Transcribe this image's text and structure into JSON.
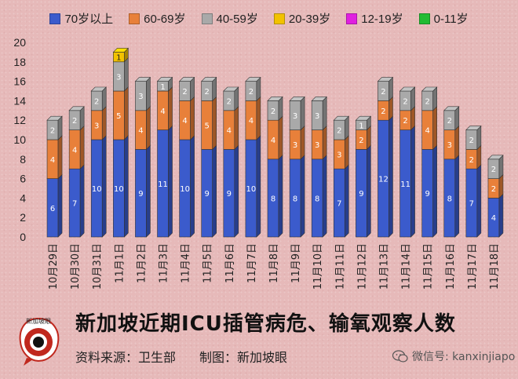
{
  "legend": [
    {
      "label": "70岁以上",
      "color": "#3b5bcc"
    },
    {
      "label": "60-69岁",
      "color": "#e8803a"
    },
    {
      "label": "40-59岁",
      "color": "#a9a9a9"
    },
    {
      "label": "20-39岁",
      "color": "#f2c200"
    },
    {
      "label": "12-19岁",
      "color": "#e020e0"
    },
    {
      "label": "0-11岁",
      "color": "#22bb33"
    }
  ],
  "chart_data": {
    "type": "bar",
    "stacked": true,
    "categories": [
      "10月29日",
      "10月30日",
      "10月31日",
      "11月1日",
      "11月2日",
      "11月3日",
      "11月4日",
      "11月5日",
      "11月6日",
      "11月7日",
      "11月8日",
      "11月9日",
      "11月10日",
      "11月11日",
      "11月12日",
      "11月13日",
      "11月14日",
      "11月15日",
      "11月16日",
      "11月17日",
      "11月18日"
    ],
    "series": [
      {
        "name": "70岁以上",
        "values": [
          6,
          7,
          10,
          10,
          9,
          11,
          10,
          9,
          9,
          10,
          8,
          8,
          8,
          7,
          9,
          12,
          11,
          9,
          8,
          7,
          4
        ]
      },
      {
        "name": "60-69岁",
        "values": [
          4,
          4,
          3,
          5,
          4,
          4,
          4,
          5,
          4,
          4,
          4,
          3,
          3,
          3,
          2,
          2,
          2,
          4,
          3,
          2,
          2
        ]
      },
      {
        "name": "40-59岁",
        "values": [
          2,
          2,
          2,
          3,
          3,
          1,
          2,
          2,
          2,
          2,
          2,
          3,
          3,
          2,
          1,
          2,
          2,
          2,
          2,
          2,
          2
        ]
      },
      {
        "name": "20-39岁",
        "values": [
          0,
          0,
          0,
          1,
          0,
          0,
          0,
          0,
          0,
          0,
          0,
          0,
          0,
          0,
          0,
          0,
          0,
          0,
          0,
          0,
          0
        ]
      },
      {
        "name": "12-19岁",
        "values": [
          0,
          0,
          0,
          0,
          0,
          0,
          0,
          0,
          0,
          0,
          0,
          0,
          0,
          0,
          0,
          0,
          0,
          0,
          0,
          0,
          0
        ]
      },
      {
        "name": "0-11岁",
        "values": [
          0,
          0,
          0,
          0,
          0,
          0,
          0,
          0,
          0,
          0,
          0,
          0,
          0,
          0,
          0,
          0,
          0,
          0,
          0,
          0,
          0
        ]
      }
    ],
    "ylim": [
      0,
      20
    ],
    "yticks": [
      0,
      2,
      4,
      6,
      8,
      10,
      12,
      14,
      16,
      18,
      20
    ],
    "grid": false,
    "legend_position": "top"
  },
  "footer": {
    "title": "新加坡近期ICU插管病危、输氧观察人数",
    "source": "资料来源：卫生部",
    "maker": "制图：新加坡眼",
    "wechat": "微信号: kanxinjiapo",
    "logo_text": "新加坡眼"
  }
}
